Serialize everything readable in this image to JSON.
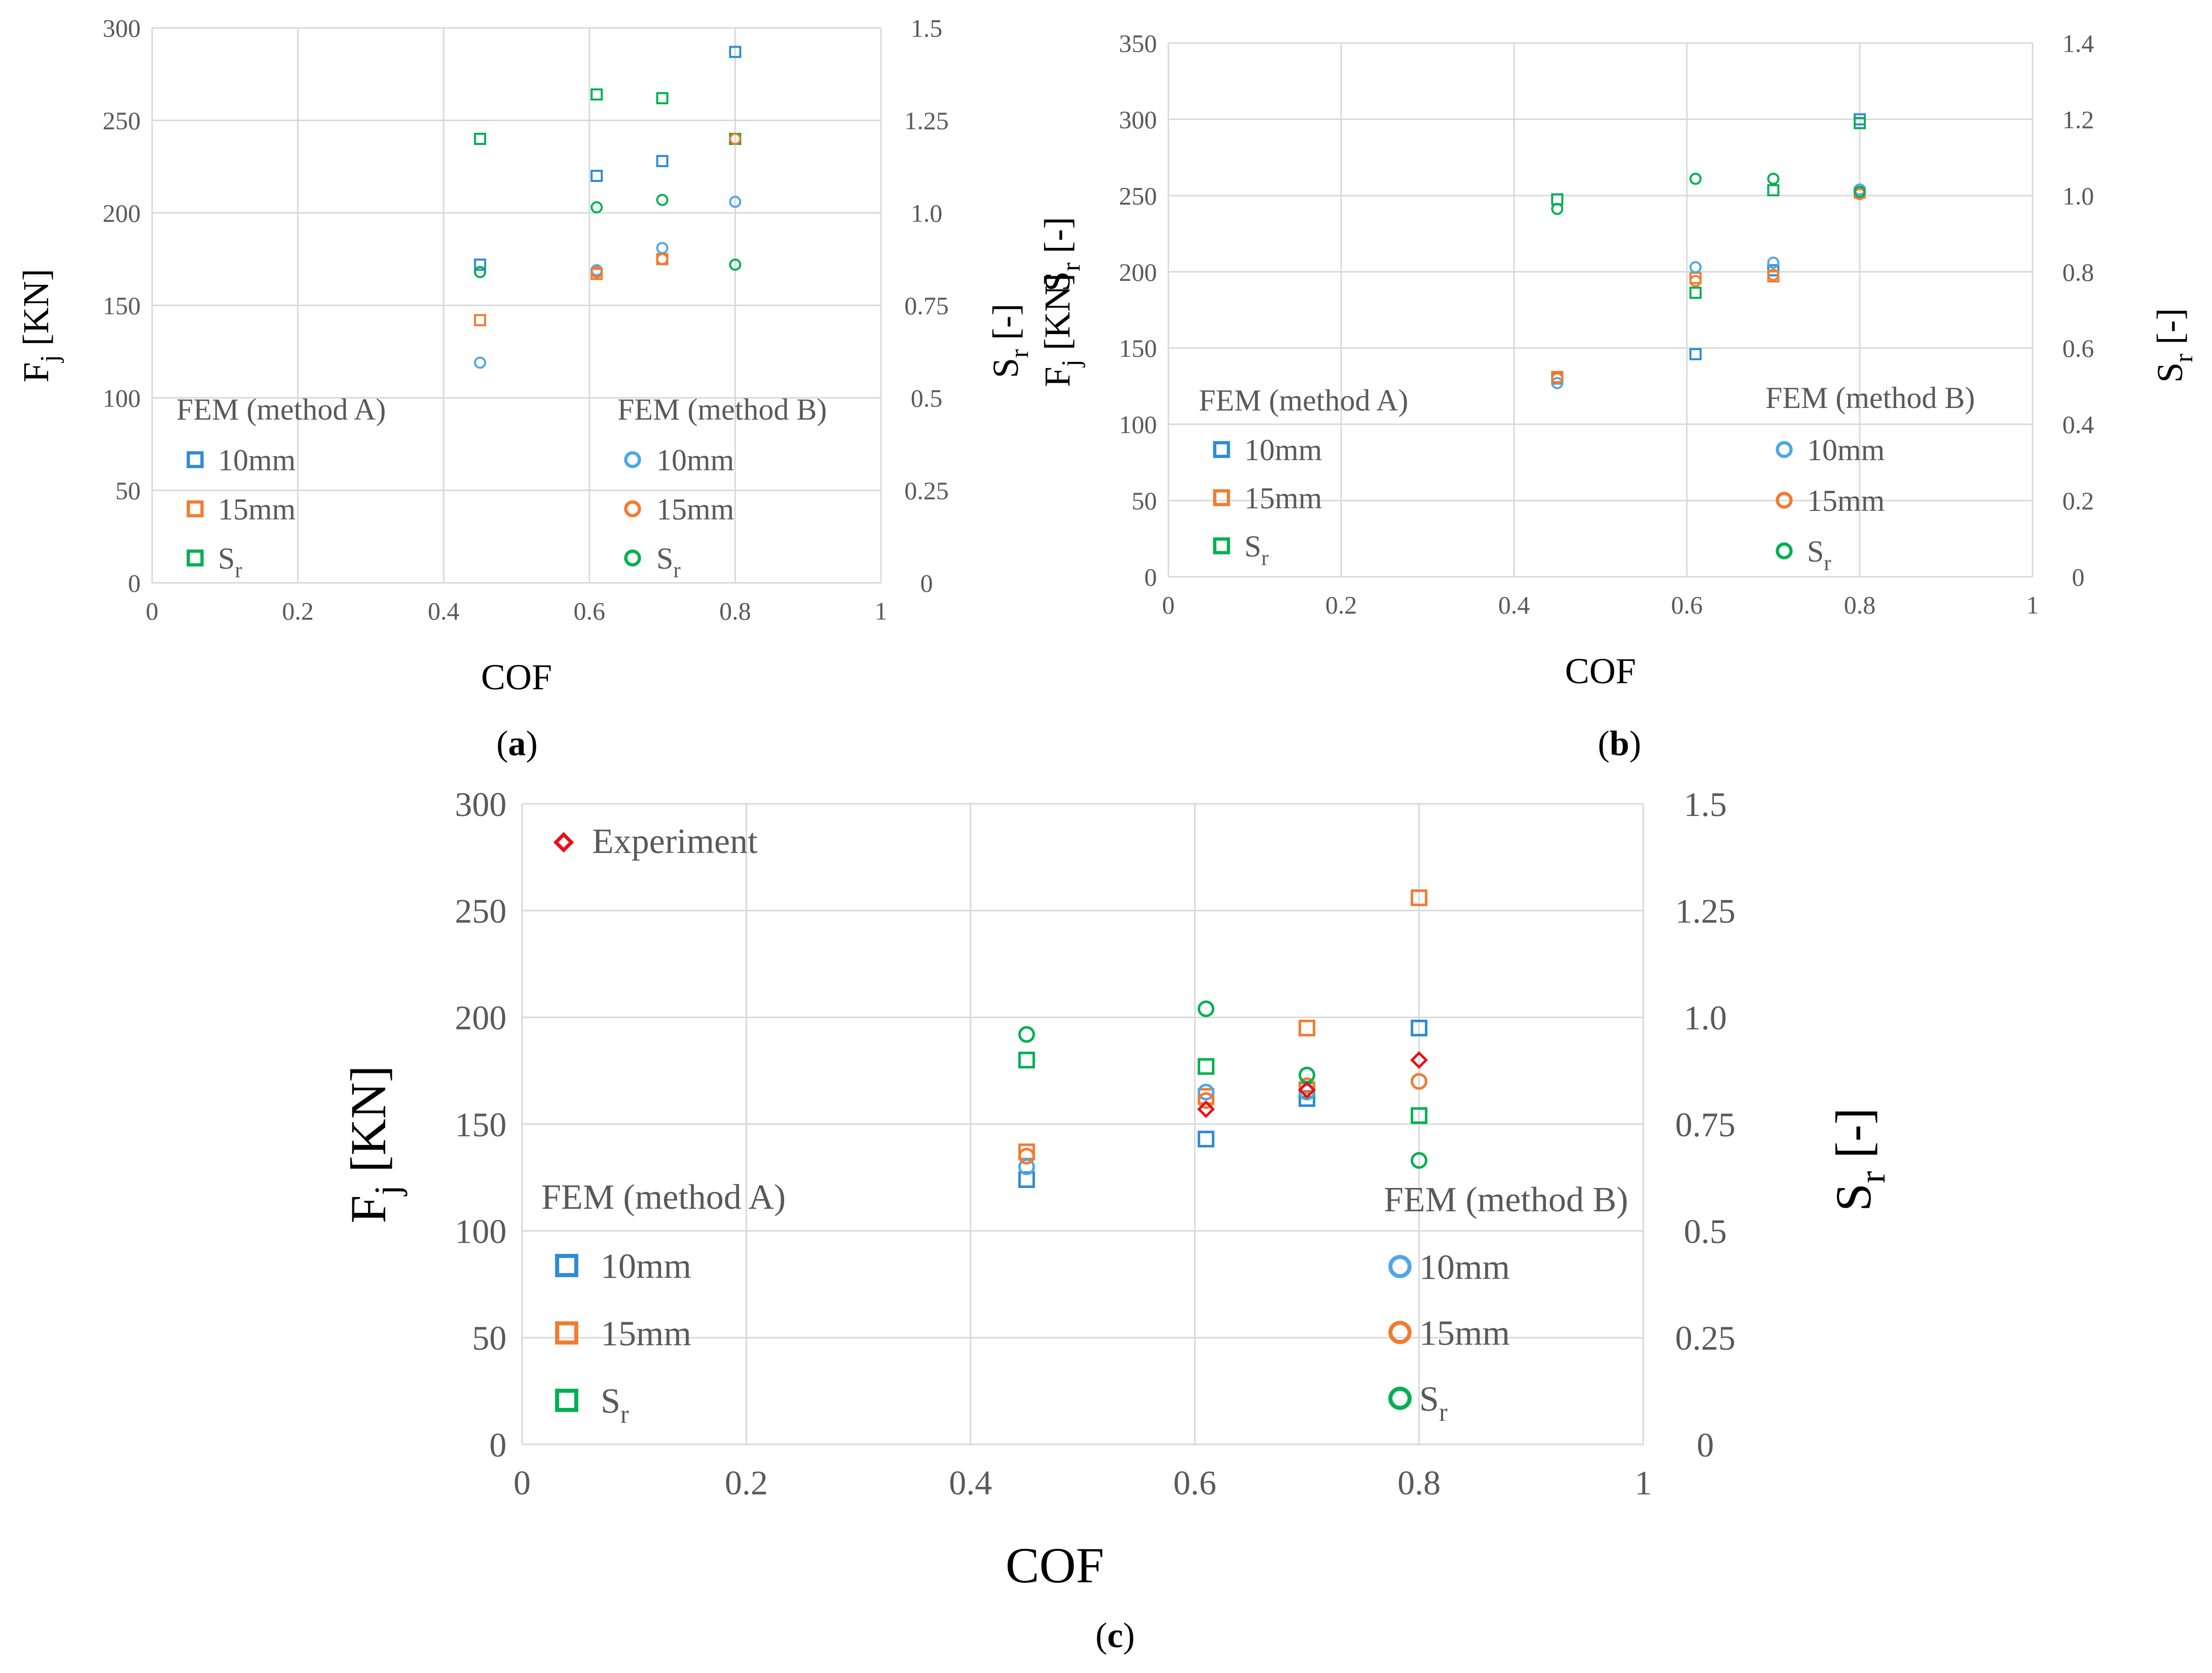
{
  "colors": {
    "blue": "#2E8BD6",
    "light_blue": "#4FA7E6",
    "orange": "#F27B2F",
    "green": "#00B050",
    "red": "#E8101A",
    "grid": "#D9D9D9",
    "tick_text": "#595959"
  },
  "chart_data": [
    {
      "type": "scatter",
      "panel_label": "a",
      "xlabel": "COF",
      "ylabel": "F_j [KN]",
      "y2label": "S_r [-]",
      "xlim": [
        0,
        1
      ],
      "ylim": [
        0,
        300
      ],
      "y2lim": [
        0,
        1.5
      ],
      "x_ticks": [
        "0",
        "0.2",
        "0.4",
        "0.6",
        "0.8",
        "1"
      ],
      "y_ticks": [
        "0",
        "50",
        "100",
        "150",
        "200",
        "250",
        "300"
      ],
      "y2_ticks": [
        "0",
        "0.25",
        "0.5",
        "0.75",
        "1.0",
        "1.25",
        "1.5"
      ],
      "grid": true,
      "legend_groups": [
        {
          "title": "FEM (method A)",
          "placement": "bottom-left",
          "entries": [
            {
              "label": "10mm",
              "marker": "square",
              "color": "blue"
            },
            {
              "label": "15mm",
              "marker": "square",
              "color": "orange"
            },
            {
              "label": "S_r",
              "marker": "square",
              "color": "green"
            }
          ]
        },
        {
          "title": "FEM (method B)",
          "placement": "bottom-right",
          "entries": [
            {
              "label": "10mm",
              "marker": "circle",
              "color": "light_blue"
            },
            {
              "label": "15mm",
              "marker": "circle",
              "color": "orange"
            },
            {
              "label": "S_r",
              "marker": "circle",
              "color": "green"
            }
          ]
        }
      ],
      "series": [
        {
          "key": "A-10mm",
          "marker": "square",
          "color": "blue",
          "axis": "left",
          "points": [
            [
              0.45,
              172
            ],
            [
              0.61,
              220
            ],
            [
              0.7,
              228
            ],
            [
              0.8,
              287
            ]
          ]
        },
        {
          "key": "A-15mm",
          "marker": "square",
          "color": "orange",
          "axis": "left",
          "points": [
            [
              0.45,
              142
            ],
            [
              0.61,
              167
            ],
            [
              0.7,
              175
            ],
            [
              0.8,
              240
            ]
          ]
        },
        {
          "key": "A-Sr",
          "marker": "square",
          "color": "green",
          "axis": "right",
          "points": [
            [
              0.45,
              1.2
            ],
            [
              0.61,
              1.32
            ],
            [
              0.7,
              1.31
            ],
            [
              0.8,
              1.2
            ]
          ]
        },
        {
          "key": "B-10mm",
          "marker": "circle",
          "color": "light_blue",
          "axis": "left",
          "points": [
            [
              0.45,
              119
            ],
            [
              0.61,
              169
            ],
            [
              0.7,
              181
            ],
            [
              0.8,
              206
            ]
          ]
        },
        {
          "key": "B-15mm",
          "marker": "circle",
          "color": "orange",
          "axis": "left",
          "points": [
            [
              0.45,
              168
            ],
            [
              0.61,
              168
            ],
            [
              0.7,
              175
            ],
            [
              0.8,
              240
            ]
          ]
        },
        {
          "key": "B-Sr",
          "marker": "circle",
          "color": "green",
          "axis": "right",
          "points": [
            [
              0.45,
              0.84
            ],
            [
              0.61,
              1.015
            ],
            [
              0.7,
              1.035
            ],
            [
              0.8,
              0.86
            ]
          ]
        }
      ]
    },
    {
      "type": "scatter",
      "panel_label": "b",
      "xlabel": "COF",
      "ylabel": "F_j [KN]",
      "y2label": "S_r [-]",
      "xlim": [
        0,
        1
      ],
      "ylim": [
        0,
        350
      ],
      "y2lim": [
        0,
        1.4
      ],
      "x_ticks": [
        "0",
        "0.2",
        "0.4",
        "0.6",
        "0.8",
        "1"
      ],
      "y_ticks": [
        "0",
        "50",
        "100",
        "150",
        "200",
        "250",
        "300",
        "350"
      ],
      "y2_ticks": [
        "0",
        "0.2",
        "0.4",
        "0.6",
        "0.8",
        "1.0",
        "1.2",
        "1.4"
      ],
      "grid": true,
      "legend_groups": [
        {
          "title": "FEM (method A)",
          "placement": "bottom-left",
          "entries": [
            {
              "label": "10mm",
              "marker": "square",
              "color": "blue"
            },
            {
              "label": "15mm",
              "marker": "square",
              "color": "orange"
            },
            {
              "label": "S_r",
              "marker": "square",
              "color": "green"
            }
          ]
        },
        {
          "title": "FEM (method B)",
          "placement": "bottom-right",
          "entries": [
            {
              "label": "10mm",
              "marker": "circle",
              "color": "light_blue"
            },
            {
              "label": "15mm",
              "marker": "circle",
              "color": "orange"
            },
            {
              "label": "S_r",
              "marker": "circle",
              "color": "green"
            }
          ]
        }
      ],
      "series": [
        {
          "key": "A-10mm",
          "marker": "square",
          "color": "blue",
          "axis": "left",
          "points": [
            [
              0.45,
              130
            ],
            [
              0.61,
              146
            ],
            [
              0.7,
              201
            ],
            [
              0.8,
              300
            ]
          ]
        },
        {
          "key": "A-15mm",
          "marker": "square",
          "color": "orange",
          "axis": "left",
          "points": [
            [
              0.45,
              131
            ],
            [
              0.61,
              196
            ],
            [
              0.7,
              197
            ],
            [
              0.8,
              252
            ]
          ]
        },
        {
          "key": "A-Sr",
          "marker": "square",
          "color": "green",
          "axis": "right",
          "points": [
            [
              0.45,
              0.99
            ],
            [
              0.61,
              0.745
            ],
            [
              0.7,
              1.014
            ],
            [
              0.8,
              1.19
            ]
          ]
        },
        {
          "key": "B-10mm",
          "marker": "circle",
          "color": "light_blue",
          "axis": "left",
          "points": [
            [
              0.45,
              127
            ],
            [
              0.61,
              203
            ],
            [
              0.7,
              206
            ],
            [
              0.8,
              254
            ]
          ]
        },
        {
          "key": "B-15mm",
          "marker": "circle",
          "color": "orange",
          "axis": "left",
          "points": [
            [
              0.45,
              130
            ],
            [
              0.61,
              194
            ],
            [
              0.7,
              198
            ],
            [
              0.8,
              251
            ]
          ]
        },
        {
          "key": "B-Sr",
          "marker": "circle",
          "color": "green",
          "axis": "right",
          "points": [
            [
              0.45,
              0.965
            ],
            [
              0.61,
              1.044
            ],
            [
              0.7,
              1.044
            ],
            [
              0.8,
              1.01
            ]
          ]
        }
      ]
    },
    {
      "type": "scatter",
      "panel_label": "c",
      "xlabel": "COF",
      "ylabel": "F_j [KN]",
      "y2label": "S_r [-]",
      "xlim": [
        0,
        1
      ],
      "ylim": [
        0,
        300
      ],
      "y2lim": [
        0,
        1.5
      ],
      "x_ticks": [
        "0",
        "0.2",
        "0.4",
        "0.6",
        "0.8",
        "1"
      ],
      "y_ticks": [
        "0",
        "50",
        "100",
        "150",
        "200",
        "250",
        "300"
      ],
      "y2_ticks": [
        "0",
        "0.25",
        "0.5",
        "0.75",
        "1.0",
        "1.25",
        "1.5"
      ],
      "grid": true,
      "experiment_label": "Experiment",
      "legend_groups": [
        {
          "title": "FEM (method A)",
          "placement": "bottom-left",
          "entries": [
            {
              "label": "10mm",
              "marker": "square",
              "color": "blue"
            },
            {
              "label": "15mm",
              "marker": "square",
              "color": "orange"
            },
            {
              "label": "S_r",
              "marker": "square",
              "color": "green"
            }
          ]
        },
        {
          "title": "FEM (method B)",
          "placement": "bottom-right",
          "entries": [
            {
              "label": "10mm",
              "marker": "circle",
              "color": "light_blue"
            },
            {
              "label": "15mm",
              "marker": "circle",
              "color": "orange"
            },
            {
              "label": "S_r",
              "marker": "circle",
              "color": "green"
            }
          ]
        }
      ],
      "series": [
        {
          "key": "A-10mm",
          "marker": "square",
          "color": "blue",
          "axis": "left",
          "points": [
            [
              0.45,
              124
            ],
            [
              0.61,
              143
            ],
            [
              0.7,
              162
            ],
            [
              0.8,
              195
            ]
          ]
        },
        {
          "key": "A-15mm",
          "marker": "square",
          "color": "orange",
          "axis": "left",
          "points": [
            [
              0.45,
              137
            ],
            [
              0.61,
              163
            ],
            [
              0.7,
              195
            ],
            [
              0.8,
              256
            ]
          ]
        },
        {
          "key": "A-Sr",
          "marker": "square",
          "color": "green",
          "axis": "right",
          "points": [
            [
              0.45,
              0.9
            ],
            [
              0.61,
              0.885
            ],
            [
              0.7,
              0.83
            ],
            [
              0.8,
              0.77
            ]
          ]
        },
        {
          "key": "B-10mm",
          "marker": "circle",
          "color": "light_blue",
          "axis": "left",
          "points": [
            [
              0.45,
              130
            ],
            [
              0.61,
              165
            ],
            [
              0.7,
              165
            ],
            [
              0.8,
              170
            ]
          ]
        },
        {
          "key": "B-15mm",
          "marker": "circle",
          "color": "orange",
          "axis": "left",
          "points": [
            [
              0.45,
              135
            ],
            [
              0.61,
              161
            ],
            [
              0.7,
              168
            ],
            [
              0.8,
              170
            ]
          ]
        },
        {
          "key": "B-Sr",
          "marker": "circle",
          "color": "green",
          "axis": "right",
          "points": [
            [
              0.45,
              0.96
            ],
            [
              0.61,
              1.02
            ],
            [
              0.7,
              0.865
            ],
            [
              0.8,
              0.665
            ]
          ]
        },
        {
          "key": "Experiment",
          "marker": "diamond",
          "color": "red",
          "axis": "left",
          "points": [
            [
              0.61,
              157
            ],
            [
              0.7,
              166
            ],
            [
              0.8,
              180
            ]
          ]
        }
      ]
    }
  ]
}
